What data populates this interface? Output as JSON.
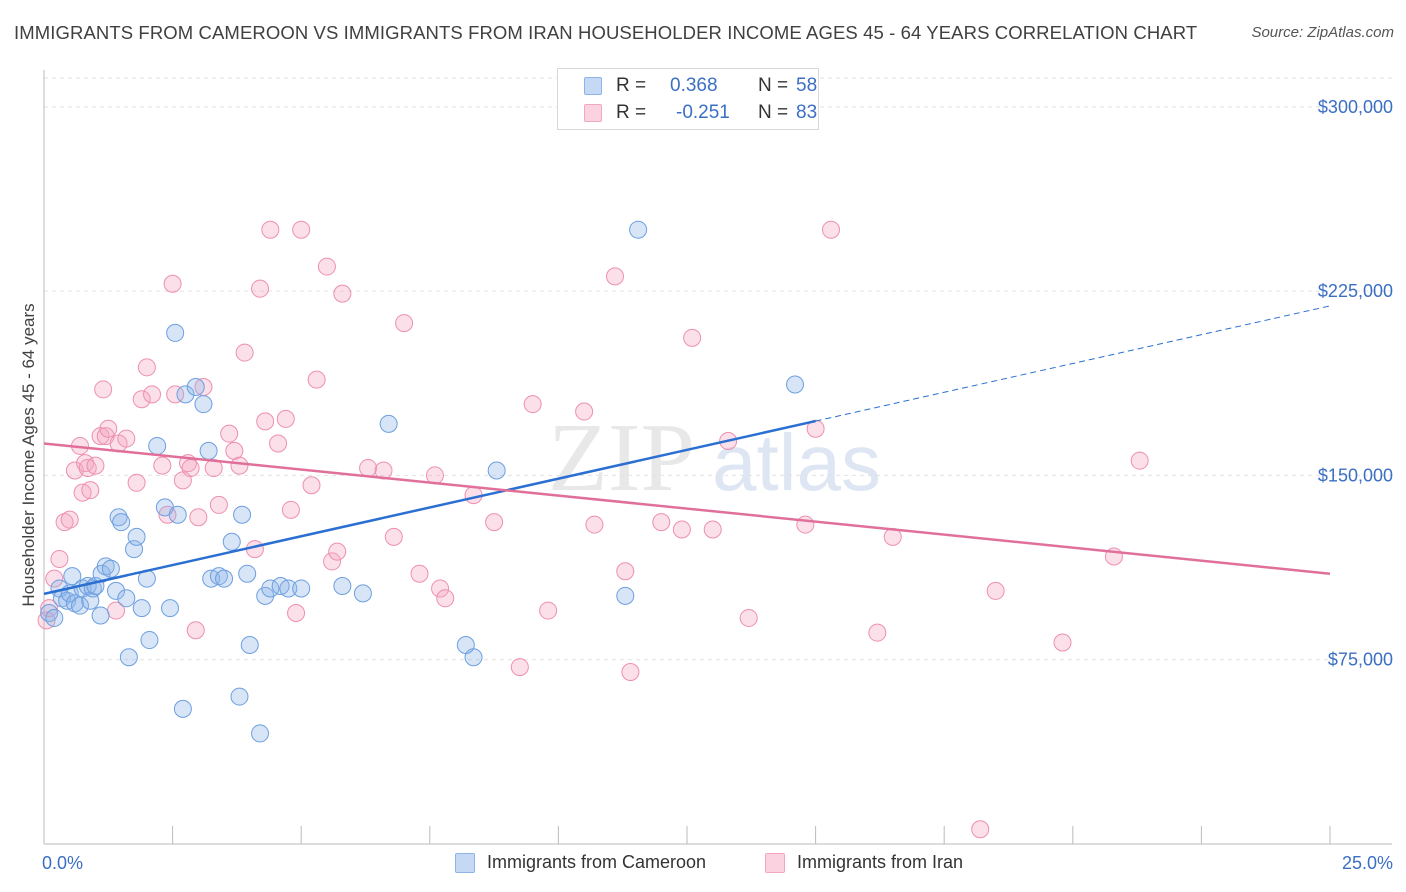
{
  "header": {
    "title": "IMMIGRANTS FROM CAMEROON VS IMMIGRANTS FROM IRAN HOUSEHOLDER INCOME AGES 45 - 64 YEARS CORRELATION CHART",
    "source": "Source: ZipAtlas.com"
  },
  "watermark": {
    "zip": "ZIP",
    "atlas": "atlas"
  },
  "legend": {
    "cameroon": {
      "r_label": "R =",
      "r_value": "0.368",
      "n_label": "N =",
      "n_value": "58"
    },
    "iran": {
      "r_label": "R =",
      "r_value": "-0.251",
      "n_label": "N =",
      "n_value": "83"
    }
  },
  "chart_data": {
    "type": "scatter",
    "ylabel": "Householder Income Ages 45 - 64 years",
    "xlim": [
      0,
      25
    ],
    "ylim": [
      0,
      315000
    ],
    "x_tick_labels": [
      "0.0%",
      "25.0%"
    ],
    "y_ticks": [
      75000,
      150000,
      225000,
      300000
    ],
    "y_tick_labels": [
      "$75,000",
      "$150,000",
      "$225,000",
      "$300,000"
    ],
    "grid": true,
    "legend_position": "top-center",
    "series": [
      {
        "name": "Immigrants from Cameroon",
        "color": "#8db4e8",
        "line_color": "#2a6fd1",
        "trend": {
          "x0": 0.0,
          "y0": 101800,
          "x1": 25.0,
          "y1": 219000,
          "solid_until_x": 15.0
        },
        "points": [
          [
            0.1,
            94000
          ],
          [
            0.2,
            92000
          ],
          [
            0.3,
            104000
          ],
          [
            0.35,
            100000
          ],
          [
            0.45,
            99000
          ],
          [
            0.5,
            102000
          ],
          [
            0.55,
            109000
          ],
          [
            0.6,
            98000
          ],
          [
            0.7,
            97000
          ],
          [
            0.75,
            104000
          ],
          [
            0.85,
            105000
          ],
          [
            0.9,
            99000
          ],
          [
            0.95,
            104000
          ],
          [
            1.0,
            105000
          ],
          [
            1.1,
            93000
          ],
          [
            1.12,
            110000
          ],
          [
            1.2,
            113000
          ],
          [
            1.3,
            112000
          ],
          [
            1.4,
            103000
          ],
          [
            1.45,
            133000
          ],
          [
            1.5,
            131000
          ],
          [
            1.6,
            100000
          ],
          [
            1.65,
            76000
          ],
          [
            1.75,
            120000
          ],
          [
            1.8,
            125000
          ],
          [
            1.9,
            96000
          ],
          [
            2.0,
            108000
          ],
          [
            2.05,
            83000
          ],
          [
            2.2,
            162000
          ],
          [
            2.35,
            137000
          ],
          [
            2.45,
            96000
          ],
          [
            2.55,
            208000
          ],
          [
            2.6,
            134000
          ],
          [
            2.7,
            55000
          ],
          [
            2.75,
            183000
          ],
          [
            2.95,
            186000
          ],
          [
            3.1,
            179000
          ],
          [
            3.2,
            160000
          ],
          [
            3.25,
            108000
          ],
          [
            3.4,
            109000
          ],
          [
            3.5,
            108000
          ],
          [
            3.65,
            123000
          ],
          [
            3.8,
            60000
          ],
          [
            3.85,
            134000
          ],
          [
            3.95,
            110000
          ],
          [
            4.0,
            81000
          ],
          [
            4.2,
            45000
          ],
          [
            4.3,
            101000
          ],
          [
            4.4,
            104000
          ],
          [
            4.6,
            105000
          ],
          [
            4.75,
            104000
          ],
          [
            5.0,
            104000
          ],
          [
            5.8,
            105000
          ],
          [
            6.2,
            102000
          ],
          [
            8.35,
            76000
          ],
          [
            8.2,
            81000
          ],
          [
            8.8,
            152000
          ],
          [
            11.3,
            101000
          ],
          [
            11.55,
            250000
          ],
          [
            14.6,
            187000
          ],
          [
            6.7,
            171000
          ]
        ]
      },
      {
        "name": "Immigrants from Iran",
        "color": "#f4a7c0",
        "line_color": "#e0709a",
        "trend": {
          "x0": 0.0,
          "y0": 163000,
          "x1": 25.0,
          "y1": 110000
        },
        "points": [
          [
            0.05,
            91000
          ],
          [
            0.1,
            96000
          ],
          [
            0.2,
            108000
          ],
          [
            0.3,
            116000
          ],
          [
            0.4,
            131000
          ],
          [
            0.5,
            132000
          ],
          [
            0.6,
            152000
          ],
          [
            0.7,
            162000
          ],
          [
            0.75,
            143000
          ],
          [
            0.8,
            155000
          ],
          [
            0.85,
            153000
          ],
          [
            0.9,
            144000
          ],
          [
            1.0,
            154000
          ],
          [
            1.1,
            166000
          ],
          [
            1.15,
            185000
          ],
          [
            1.2,
            166000
          ],
          [
            1.25,
            169000
          ],
          [
            1.4,
            95000
          ],
          [
            1.45,
            163000
          ],
          [
            1.6,
            165000
          ],
          [
            1.8,
            147000
          ],
          [
            1.9,
            181000
          ],
          [
            2.0,
            194000
          ],
          [
            2.1,
            183000
          ],
          [
            2.3,
            154000
          ],
          [
            2.4,
            134000
          ],
          [
            2.5,
            228000
          ],
          [
            2.55,
            183000
          ],
          [
            2.7,
            148000
          ],
          [
            2.8,
            155000
          ],
          [
            2.85,
            153000
          ],
          [
            2.95,
            87000
          ],
          [
            3.0,
            133000
          ],
          [
            3.1,
            186000
          ],
          [
            3.3,
            153000
          ],
          [
            3.4,
            138000
          ],
          [
            3.6,
            167000
          ],
          [
            3.7,
            160000
          ],
          [
            3.8,
            154000
          ],
          [
            3.9,
            200000
          ],
          [
            4.1,
            120000
          ],
          [
            4.2,
            226000
          ],
          [
            4.3,
            172000
          ],
          [
            4.4,
            250000
          ],
          [
            4.55,
            163000
          ],
          [
            4.7,
            173000
          ],
          [
            4.8,
            136000
          ],
          [
            4.9,
            94000
          ],
          [
            5.0,
            250000
          ],
          [
            5.2,
            146000
          ],
          [
            5.3,
            189000
          ],
          [
            5.5,
            235000
          ],
          [
            5.6,
            115000
          ],
          [
            5.7,
            119000
          ],
          [
            5.8,
            224000
          ],
          [
            6.3,
            153000
          ],
          [
            6.6,
            152000
          ],
          [
            6.8,
            125000
          ],
          [
            7.0,
            212000
          ],
          [
            7.3,
            110000
          ],
          [
            7.6,
            150000
          ],
          [
            7.7,
            104000
          ],
          [
            7.8,
            100000
          ],
          [
            8.35,
            142000
          ],
          [
            8.75,
            131000
          ],
          [
            9.25,
            72000
          ],
          [
            9.5,
            179000
          ],
          [
            9.8,
            95000
          ],
          [
            10.5,
            176000
          ],
          [
            11.1,
            231000
          ],
          [
            11.3,
            111000
          ],
          [
            11.4,
            70000
          ],
          [
            12.0,
            131000
          ],
          [
            12.4,
            128000
          ],
          [
            12.6,
            206000
          ],
          [
            13.3,
            164000
          ],
          [
            13.7,
            92000
          ],
          [
            14.8,
            130000
          ],
          [
            15.3,
            250000
          ],
          [
            16.2,
            86000
          ],
          [
            18.5,
            103000
          ],
          [
            19.8,
            82000
          ],
          [
            20.8,
            117000
          ],
          [
            21.3,
            156000
          ],
          [
            18.2,
            6000
          ],
          [
            13.0,
            128000
          ],
          [
            15.0,
            169000
          ],
          [
            16.5,
            125000
          ],
          [
            10.7,
            130000
          ]
        ]
      }
    ]
  },
  "bottom_legend": [
    {
      "label": "Immigrants from Cameroon",
      "color": "#8db4e8"
    },
    {
      "label": "Immigrants from Iran",
      "color": "#f4a7c0"
    }
  ]
}
